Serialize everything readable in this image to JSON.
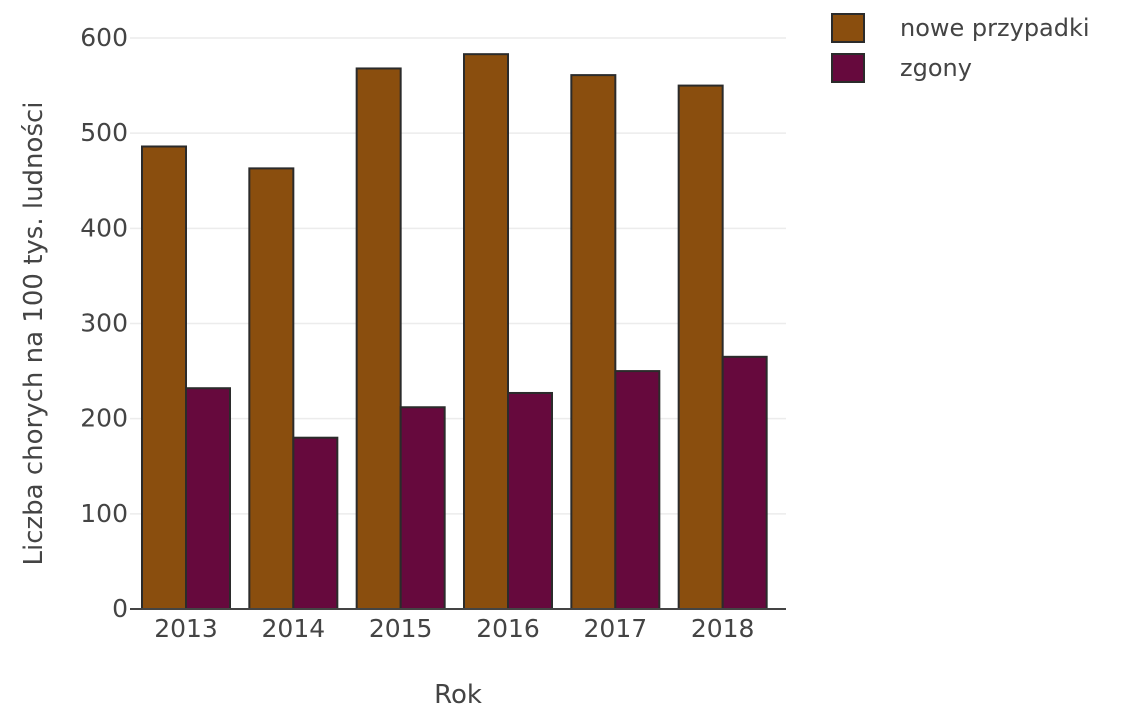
{
  "chart_data": {
    "type": "bar",
    "title": "",
    "xlabel": "Rok",
    "ylabel": "Liczba chorych na 100 tys. ludności",
    "categories": [
      "2013",
      "2014",
      "2015",
      "2016",
      "2017",
      "2018"
    ],
    "series": [
      {
        "name": "nowe przypadki",
        "color": "#8a4e0e",
        "values": [
          486,
          463,
          568,
          583,
          561,
          550
        ]
      },
      {
        "name": "zgony",
        "color": "#66093d",
        "values": [
          232,
          180,
          212,
          227,
          250,
          265
        ]
      }
    ],
    "ylim": [
      0,
      600
    ],
    "yticks": [
      0,
      100,
      200,
      300,
      400,
      500,
      600
    ],
    "grid": true,
    "legend_position": "top-right",
    "bar_outline_color": "#2b2b2b"
  }
}
